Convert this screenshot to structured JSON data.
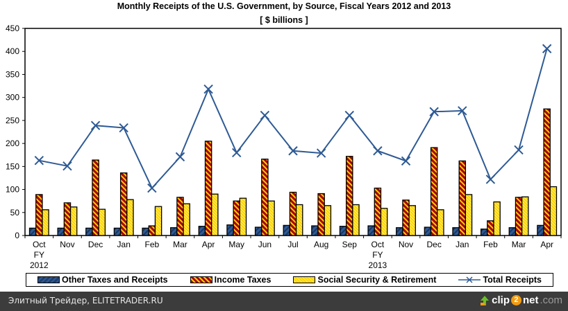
{
  "chart_data": {
    "type": "bar+line",
    "title": "Monthly Receipts of the U.S. Government, by Source, Fiscal Years 2012 and 2013",
    "subtitle": "[ $ billions ]",
    "xlabel": "",
    "ylabel": "",
    "ylim": [
      0,
      450
    ],
    "yticks": [
      "0",
      "50",
      "100",
      "150",
      "200",
      "250",
      "300",
      "350",
      "400",
      "450"
    ],
    "categories": [
      {
        "line1": "Oct",
        "line2": "FY",
        "line3": "2012"
      },
      {
        "line1": "Nov"
      },
      {
        "line1": "Dec"
      },
      {
        "line1": "Jan"
      },
      {
        "line1": "Feb"
      },
      {
        "line1": "Mar"
      },
      {
        "line1": "Apr"
      },
      {
        "line1": "May"
      },
      {
        "line1": "Jun"
      },
      {
        "line1": "Jul"
      },
      {
        "line1": "Aug"
      },
      {
        "line1": "Sep"
      },
      {
        "line1": "Oct",
        "line2": "FY",
        "line3": "2013"
      },
      {
        "line1": "Nov"
      },
      {
        "line1": "Dec"
      },
      {
        "line1": "Jan"
      },
      {
        "line1": "Feb"
      },
      {
        "line1": "Mar"
      },
      {
        "line1": "Apr"
      }
    ],
    "series": [
      {
        "name": "Other Taxes and Receipts",
        "kind": "bar",
        "color": "#1f3f6e",
        "values": [
          16,
          16,
          16,
          16,
          16,
          17,
          20,
          23,
          18,
          22,
          21,
          20,
          21,
          17,
          18,
          17,
          14,
          17,
          22
        ]
      },
      {
        "name": "Income Taxes",
        "kind": "bar",
        "color": "#a3000f",
        "values": [
          89,
          71,
          164,
          136,
          21,
          83,
          205,
          75,
          166,
          94,
          91,
          172,
          103,
          77,
          191,
          162,
          32,
          83,
          275
        ]
      },
      {
        "name": "Social Security & Retirement",
        "kind": "bar",
        "color": "#ffd500",
        "values": [
          56,
          62,
          57,
          78,
          63,
          69,
          90,
          81,
          75,
          67,
          65,
          67,
          59,
          65,
          56,
          89,
          73,
          84,
          106
        ]
      },
      {
        "name": "Total Receipts",
        "kind": "line",
        "color": "#2e5a94",
        "values": [
          163,
          151,
          239,
          234,
          103,
          171,
          318,
          180,
          261,
          184,
          179,
          261,
          184,
          162,
          269,
          271,
          122,
          186,
          406
        ]
      }
    ],
    "legend_position": "bottom",
    "grid": false
  },
  "footer": {
    "left_text": "Элитный Трейдер, ELITETRADER.RU",
    "logo_part1": "clip",
    "logo_part2": "2",
    "logo_part3": "net",
    "logo_part4": ".com"
  }
}
